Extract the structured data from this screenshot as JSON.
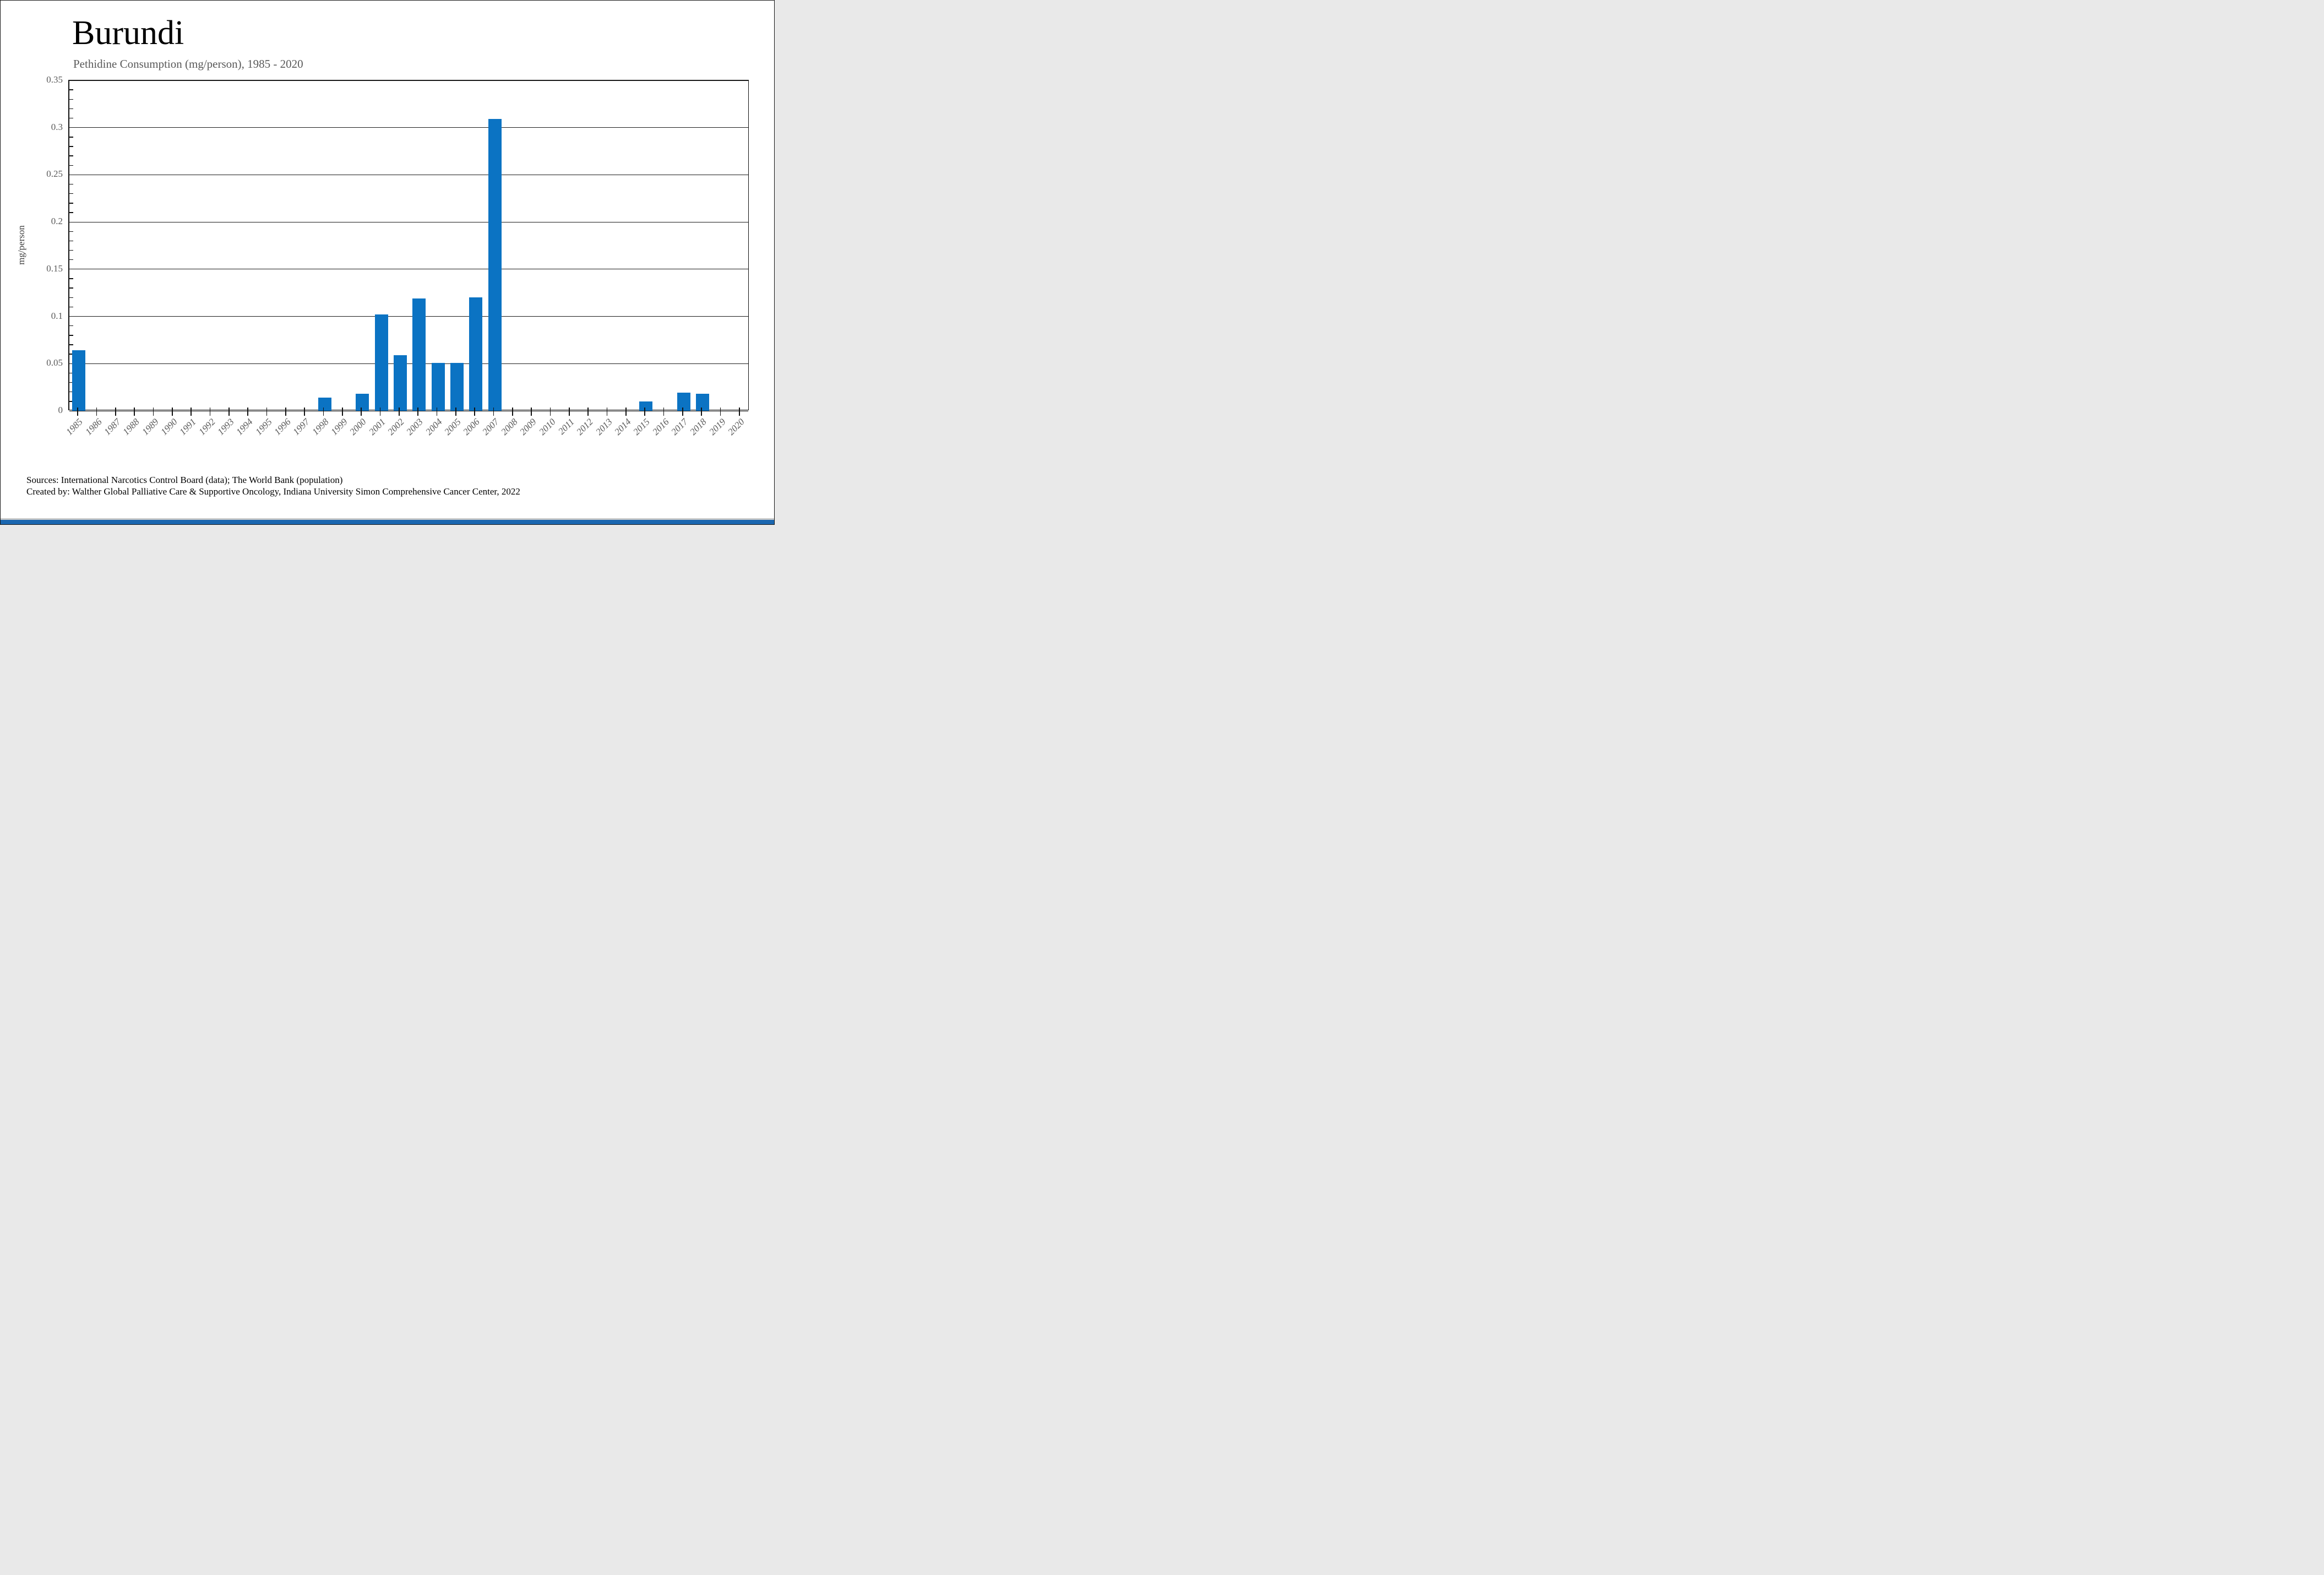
{
  "header": {
    "title": "Burundi",
    "subtitle": "Pethidine Consumption (mg/person), 1985 - 2020"
  },
  "chart_data": {
    "type": "bar",
    "title": "Burundi",
    "subtitle": "Pethidine Consumption (mg/person), 1985 - 2020",
    "categories": [
      "1985",
      "1986",
      "1987",
      "1988",
      "1989",
      "1990",
      "1991",
      "1992",
      "1993",
      "1994",
      "1995",
      "1996",
      "1997",
      "1998",
      "1999",
      "2000",
      "2001",
      "2002",
      "2003",
      "2004",
      "2005",
      "2006",
      "2007",
      "2008",
      "2009",
      "2010",
      "2011",
      "2012",
      "2013",
      "2014",
      "2015",
      "2016",
      "2017",
      "2018",
      "2019",
      "2020"
    ],
    "values": [
      0.064,
      0,
      0,
      0,
      0,
      0,
      0,
      0,
      0,
      0,
      0,
      0,
      0,
      0.014,
      0,
      0.018,
      0.102,
      0.059,
      0.119,
      0.051,
      0.051,
      0.12,
      0.309,
      0,
      0,
      0,
      0,
      0,
      0,
      0,
      0.01,
      0,
      0.019,
      0.018,
      0,
      0
    ],
    "xlabel": "",
    "ylabel": "mg/person",
    "ylim": [
      0,
      0.35
    ],
    "ytick_step": 0.05,
    "ytick_labels": [
      "0",
      "0.05",
      "0.1",
      "0.15",
      "0.2",
      "0.25",
      "0.3",
      "0.35"
    ],
    "minor_tick_step": 0.01,
    "grid": true,
    "legend_position": "none",
    "bar_color": "#0b73c3",
    "gridline_color": "#1c1c1c",
    "tick_label_color": "#595959"
  },
  "footer": {
    "line1": "Sources: International Narcotics Control Board (data); The World Bank (population)",
    "line2": "Created by: Walther Global Palliative Care & Supportive Oncology, Indiana University Simon Comprehensive Cancer Center, 2022"
  }
}
